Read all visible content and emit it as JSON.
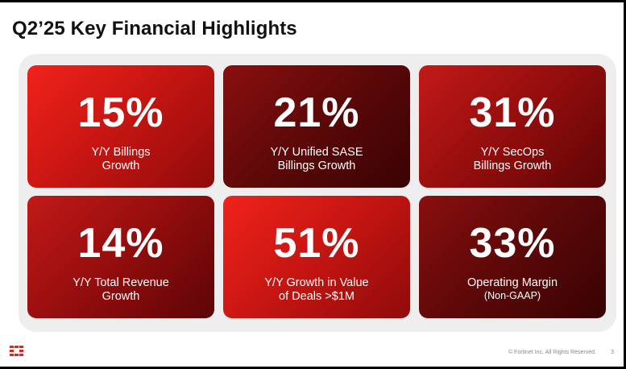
{
  "slide": {
    "title": "Q2’25 Key Financial Highlights",
    "tiles": [
      {
        "value": "15%",
        "label_line1": "Y/Y Billings",
        "label_line2": "Growth"
      },
      {
        "value": "21%",
        "label_line1": "Y/Y Unified SASE",
        "label_line2": "Billings Growth"
      },
      {
        "value": "31%",
        "label_line1": "Y/Y SecOps",
        "label_line2": "Billings Growth"
      },
      {
        "value": "14%",
        "label_line1": "Y/Y Total Revenue",
        "label_line2": "Growth"
      },
      {
        "value": "51%",
        "label_line1": "Y/Y Growth in Value",
        "label_line2": "of Deals >$1M"
      },
      {
        "value": "33%",
        "label_line1": "Operating Margin",
        "label_line2": "(Non-GAAP)"
      }
    ],
    "footer": "© Fortinet Inc. All Rights Reserved.",
    "page_number": "3",
    "logo_icon": "fortinet-logo-icon",
    "colors": {
      "brand_red": "#da291c",
      "tile_bright": "#e01f18",
      "tile_mid": "#a01010",
      "tile_dark": "#5c0808"
    }
  }
}
